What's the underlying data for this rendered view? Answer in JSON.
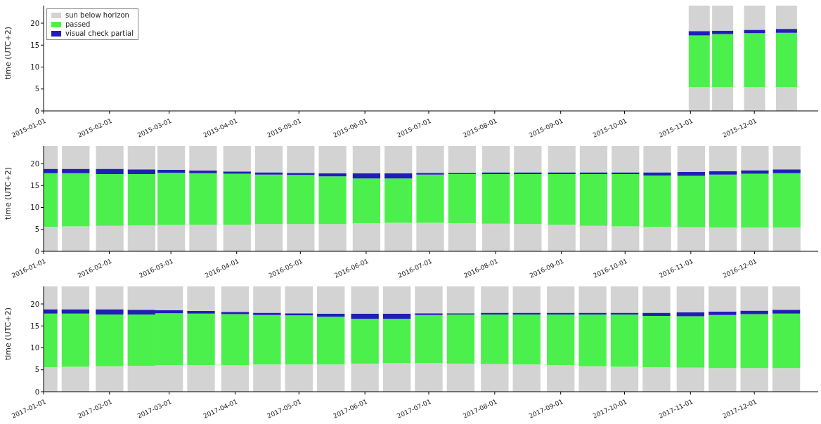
{
  "chart_data": [
    {
      "type": "bar",
      "stacked": true,
      "ylabel": "time (UTC+2)",
      "legend": "top left",
      "x": [
        "2015-11-05",
        "2015-11-16",
        "2015-12-01",
        "2015-12-16"
      ],
      "xlim": [
        "2015-01-01",
        "2015-12-31"
      ],
      "xticks": [
        "2015-01-01",
        "2015-02-01",
        "2015-03-01",
        "2015-04-01",
        "2015-05-01",
        "2015-06-01",
        "2015-07-01",
        "2015-08-01",
        "2015-09-01",
        "2015-10-01",
        "2015-11-01",
        "2015-12-01"
      ],
      "ylim": [
        0,
        24
      ],
      "yticks": [
        0,
        5,
        10,
        15,
        20
      ],
      "series": [
        {
          "name": "sun below horizon",
          "color": "#d3d3d3",
          "values": [
            5.4,
            5.4,
            5.4,
            5.4
          ]
        },
        {
          "name": "passed",
          "color": "#4cf04c",
          "values": [
            11.8,
            12.1,
            12.3,
            12.4
          ]
        },
        {
          "name": "visual check partial",
          "color": "#1f1fb8",
          "values": [
            1.0,
            0.8,
            0.8,
            0.9
          ]
        },
        {
          "color": "#d3d3d3",
          "values": [
            5.8,
            5.7,
            5.5,
            5.3
          ]
        }
      ]
    },
    {
      "type": "bar",
      "stacked": true,
      "ylabel": "time (UTC+2)",
      "x": [
        "2016-01-01",
        "2016-01-16",
        "2016-02-01",
        "2016-02-16",
        "2016-03-01",
        "2016-03-16",
        "2016-04-01",
        "2016-04-16",
        "2016-05-01",
        "2016-05-16",
        "2016-06-01",
        "2016-06-16",
        "2016-07-01",
        "2016-07-16",
        "2016-08-01",
        "2016-08-16",
        "2016-09-01",
        "2016-09-16",
        "2016-10-01",
        "2016-10-16",
        "2016-11-01",
        "2016-11-16",
        "2016-12-01",
        "2016-12-16"
      ],
      "xlim": [
        "2016-01-01",
        "2016-12-31"
      ],
      "xticks": [
        "2016-01-01",
        "2016-02-01",
        "2016-03-01",
        "2016-04-01",
        "2016-05-01",
        "2016-06-01",
        "2016-07-01",
        "2016-08-01",
        "2016-09-01",
        "2016-10-01",
        "2016-11-01",
        "2016-12-01"
      ],
      "ylim": [
        0,
        24
      ],
      "yticks": [
        0,
        5,
        10,
        15,
        20
      ],
      "series": [
        {
          "color": "#d3d3d3",
          "values": [
            5.6,
            5.7,
            5.8,
            5.9,
            6.0,
            6.1,
            6.1,
            6.2,
            6.2,
            6.2,
            6.4,
            6.5,
            6.5,
            6.4,
            6.3,
            6.2,
            6.1,
            5.8,
            5.7,
            5.6,
            5.5,
            5.4,
            5.4,
            5.4
          ]
        },
        {
          "color": "#4cf04c",
          "values": [
            12.2,
            12.1,
            11.8,
            11.7,
            11.9,
            11.7,
            11.6,
            11.3,
            11.2,
            10.9,
            10.2,
            10.1,
            11.0,
            11.2,
            11.3,
            11.4,
            11.5,
            11.8,
            11.9,
            11.7,
            11.7,
            12.1,
            12.3,
            12.4
          ]
        },
        {
          "color": "#1f1fb8",
          "values": [
            1.0,
            1.0,
            1.2,
            1.1,
            0.7,
            0.6,
            0.5,
            0.5,
            0.5,
            0.7,
            1.2,
            1.2,
            0.4,
            0.3,
            0.4,
            0.4,
            0.4,
            0.4,
            0.4,
            0.7,
            0.9,
            0.8,
            0.8,
            0.9
          ]
        },
        {
          "color": "#d3d3d3",
          "values": [
            5.2,
            5.2,
            5.2,
            5.3,
            5.4,
            5.6,
            5.8,
            6.0,
            6.1,
            6.2,
            6.2,
            6.2,
            6.1,
            6.1,
            6.0,
            6.0,
            6.0,
            6.0,
            6.0,
            6.0,
            5.9,
            5.7,
            5.5,
            5.3
          ]
        }
      ]
    },
    {
      "type": "bar",
      "stacked": true,
      "ylabel": "time (UTC+2)",
      "x": [
        "2017-01-01",
        "2017-01-16",
        "2017-02-01",
        "2017-02-16",
        "2017-03-01",
        "2017-03-16",
        "2017-04-01",
        "2017-04-16",
        "2017-05-01",
        "2017-05-16",
        "2017-06-01",
        "2017-06-16",
        "2017-07-01",
        "2017-07-16",
        "2017-08-01",
        "2017-08-16",
        "2017-09-01",
        "2017-09-16",
        "2017-10-01",
        "2017-10-16",
        "2017-11-01",
        "2017-11-16",
        "2017-12-01",
        "2017-12-16"
      ],
      "xlim": [
        "2017-01-01",
        "2017-12-31"
      ],
      "xticks": [
        "2017-01-01",
        "2017-02-01",
        "2017-03-01",
        "2017-04-01",
        "2017-05-01",
        "2017-06-01",
        "2017-07-01",
        "2017-08-01",
        "2017-09-01",
        "2017-10-01",
        "2017-11-01",
        "2017-12-01"
      ],
      "ylim": [
        0,
        24
      ],
      "yticks": [
        0,
        5,
        10,
        15,
        20
      ],
      "series": [
        {
          "color": "#d3d3d3",
          "values": [
            5.6,
            5.7,
            5.8,
            5.9,
            6.0,
            6.1,
            6.1,
            6.2,
            6.2,
            6.2,
            6.4,
            6.5,
            6.5,
            6.4,
            6.3,
            6.2,
            6.1,
            5.8,
            5.7,
            5.6,
            5.5,
            5.4,
            5.4,
            5.4
          ]
        },
        {
          "color": "#4cf04c",
          "values": [
            12.2,
            12.1,
            11.8,
            11.7,
            11.9,
            11.7,
            11.6,
            11.3,
            11.2,
            10.9,
            10.2,
            10.1,
            11.0,
            11.2,
            11.3,
            11.4,
            11.5,
            11.8,
            11.9,
            11.7,
            11.7,
            12.1,
            12.3,
            12.4
          ]
        },
        {
          "color": "#1f1fb8",
          "values": [
            1.0,
            1.0,
            1.2,
            1.1,
            0.7,
            0.6,
            0.5,
            0.5,
            0.5,
            0.7,
            1.2,
            1.2,
            0.4,
            0.3,
            0.4,
            0.4,
            0.4,
            0.4,
            0.4,
            0.7,
            0.9,
            0.8,
            0.8,
            0.9
          ]
        },
        {
          "color": "#d3d3d3",
          "values": [
            5.2,
            5.2,
            5.2,
            5.3,
            5.4,
            5.6,
            5.8,
            6.0,
            6.1,
            6.2,
            6.2,
            6.2,
            6.1,
            6.1,
            6.0,
            6.0,
            6.0,
            6.0,
            6.0,
            6.0,
            5.9,
            5.7,
            5.5,
            5.3
          ]
        }
      ]
    }
  ]
}
